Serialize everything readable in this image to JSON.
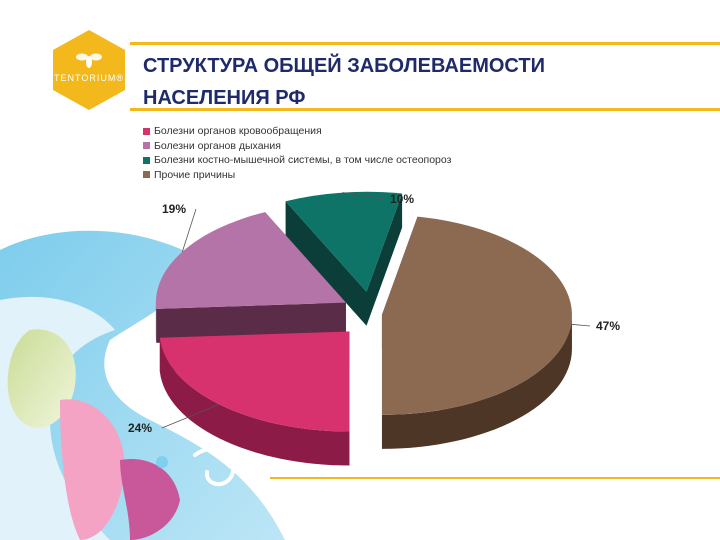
{
  "header": {
    "logo_text": "TENTORIUM®",
    "title_line1": "СТРУКТУРА ОБЩЕЙ ЗАБОЛЕВАЕМОСТИ",
    "title_line2": "НАСЕЛЕНИЯ РФ"
  },
  "chart_data": {
    "type": "pie",
    "style": "3d exploded",
    "legend_position": "top-left",
    "slices": [
      {
        "label": "Болезни органов кровообращения",
        "value": 24,
        "data_label": "24%",
        "color": "#d8326e",
        "dark": "#8c1c47"
      },
      {
        "label": "Болезни органов дыхания",
        "value": 19,
        "data_label": "19%",
        "color": "#b574a8",
        "dark": "#5a2c48"
      },
      {
        "label": "Болезни костно-мышечной системы, в том числе остеопороз",
        "value": 10,
        "data_label": "10%",
        "color": "#0f7468",
        "dark": "#0b3d39"
      },
      {
        "label": "Прочие причины",
        "value": 47,
        "data_label": "47%",
        "color": "#8c6a52",
        "dark": "#4e3627"
      }
    ]
  },
  "colors": {
    "accent": "#f2b81c",
    "title": "#1f2a6b"
  }
}
